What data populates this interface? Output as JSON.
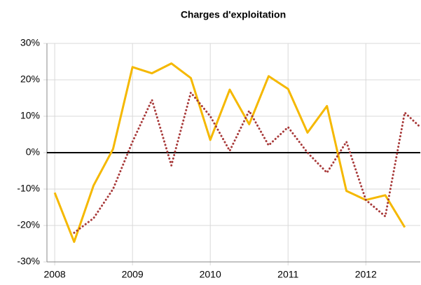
{
  "chart_data": {
    "type": "line",
    "title": "Charges d'exploitation",
    "x": [
      2008,
      2008.25,
      2008.5,
      2008.75,
      2009,
      2009.25,
      2009.5,
      2009.75,
      2010,
      2010.25,
      2010.5,
      2010.75,
      2011,
      2011.25,
      2011.5,
      2011.75,
      2012,
      2012.25,
      2012.5,
      2012.7
    ],
    "series": [
      {
        "color": "#f5b800",
        "dash": false,
        "values": [
          -11,
          -24.5,
          -9,
          1,
          23.5,
          21.8,
          24.5,
          20.5,
          3.5,
          17.3,
          7.8,
          21,
          17.5,
          5.5,
          12.8,
          -10.5,
          -13,
          -11.7,
          -20.5,
          null
        ]
      },
      {
        "color": "#a83a3a",
        "dash": true,
        "values": [
          null,
          -22,
          -18,
          -10,
          3,
          14.5,
          -3.5,
          16.5,
          10,
          0.5,
          11.5,
          2,
          7,
          0,
          -5.5,
          3,
          -13,
          -17.5,
          11,
          7
        ]
      }
    ],
    "xlim": [
      2007.9,
      2012.7
    ],
    "xticks": [
      2008,
      2009,
      2010,
      2011,
      2012
    ],
    "ylim": [
      -30,
      30
    ],
    "yticks": [
      {
        "value": -30,
        "label": "-30%"
      },
      {
        "value": -20,
        "label": "-20%"
      },
      {
        "value": -10,
        "label": "-10%"
      },
      {
        "value": 0,
        "label": "0%"
      },
      {
        "value": 10,
        "label": "10%"
      },
      {
        "value": 20,
        "label": "20%"
      },
      {
        "value": 30,
        "label": "30%"
      }
    ],
    "grid": true
  }
}
